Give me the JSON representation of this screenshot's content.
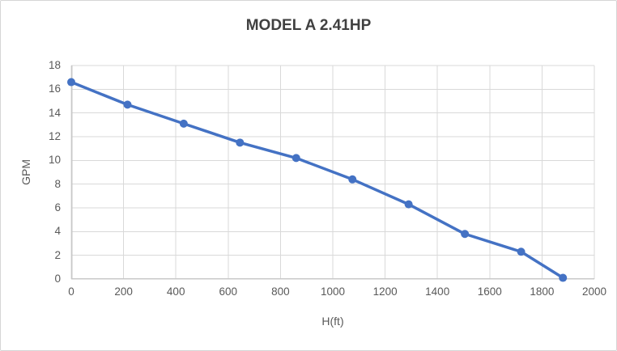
{
  "chart_data": {
    "type": "line",
    "title": "MODEL A 2.41HP",
    "xlabel": "H(ft)",
    "ylabel": "GPM",
    "series": [
      {
        "name": "Model A 2.41HP curve",
        "x": [
          0,
          215,
          430,
          645,
          860,
          1075,
          1290,
          1505,
          1720,
          1880
        ],
        "y": [
          16.6,
          14.7,
          13.1,
          11.5,
          10.2,
          8.4,
          6.3,
          3.8,
          2.3,
          0.1
        ]
      }
    ],
    "xlim": [
      0,
      2000
    ],
    "ylim": [
      0,
      18
    ],
    "x_ticks": [
      0,
      200,
      400,
      600,
      800,
      1000,
      1200,
      1400,
      1600,
      1800,
      2000
    ],
    "y_ticks": [
      0,
      2,
      4,
      6,
      8,
      10,
      12,
      14,
      16,
      18
    ],
    "grid": true,
    "legend": false,
    "marker": "circle",
    "colors": {
      "series": "#4472C4",
      "gridline": "#D9D9D9",
      "axis": "#C8C8C8",
      "title": "#404040",
      "tick_label": "#595959",
      "axis_title": "#595959",
      "background": "#FFFFFF"
    }
  }
}
